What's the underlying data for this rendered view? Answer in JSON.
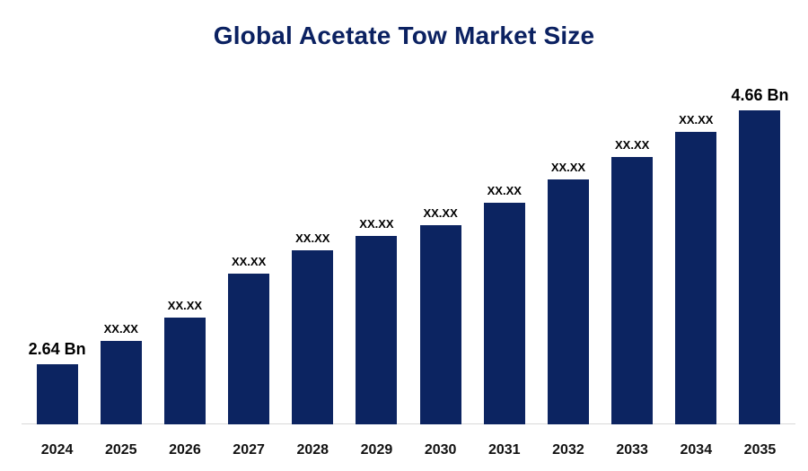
{
  "title": "Global Acetate Tow Market Size",
  "chart_data": {
    "type": "bar",
    "title": "Global Acetate Tow Market Size",
    "categories": [
      "2024",
      "2025",
      "2026",
      "2027",
      "2028",
      "2029",
      "2030",
      "2031",
      "2032",
      "2033",
      "2034",
      "2035"
    ],
    "bar_labels": [
      "2.64 Bn",
      "XX.XX",
      "XX.XX",
      "XX.XX",
      "XX.XX",
      "XX.XX",
      "XX.XX",
      "XX.XX",
      "XX.XX",
      "XX.XX",
      "XX.XX",
      "4.66 Bn"
    ],
    "values_bn": [
      2.64,
      null,
      null,
      null,
      null,
      null,
      null,
      null,
      null,
      null,
      null,
      4.66
    ],
    "heights_pct": [
      19,
      26.5,
      34,
      48,
      55.5,
      60,
      63.5,
      70.5,
      78,
      85,
      93,
      100
    ],
    "bar_color": "#0c2461",
    "title_color": "#0b2161",
    "xlabel": "",
    "ylabel": "",
    "legend": "none",
    "grid": "off",
    "units": "Bn"
  }
}
